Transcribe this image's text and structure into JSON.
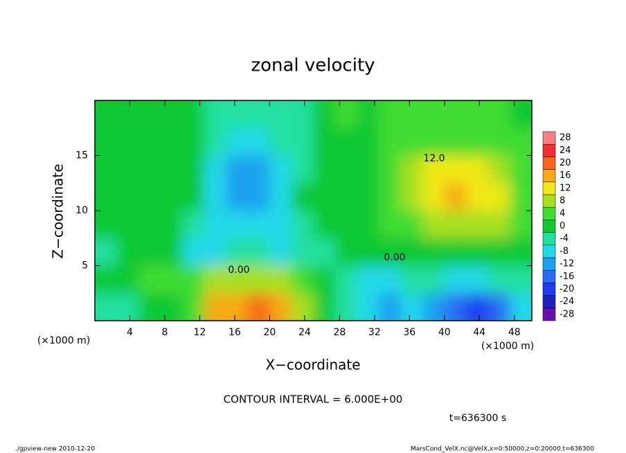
{
  "chart_data": {
    "type": "contour",
    "title": "zonal velocity",
    "x_label": "X−coordinate",
    "y_label": "Z−coordinate",
    "x_unit_label": "(×1000 m)",
    "y_unit_label": "(×1000 m)",
    "xlim": [
      0,
      50
    ],
    "ylim": [
      0,
      20
    ],
    "xticks": [
      4,
      8,
      12,
      16,
      20,
      24,
      28,
      32,
      36,
      40,
      44,
      48
    ],
    "yticks": [
      5,
      10,
      15
    ],
    "x": [
      1.25,
      3.75,
      6.25,
      8.75,
      11.25,
      13.75,
      16.25,
      18.75,
      21.25,
      23.75,
      26.25,
      28.75,
      31.25,
      33.75,
      36.25,
      38.75,
      41.25,
      43.75,
      46.25,
      48.75
    ],
    "z": [
      1.25,
      3.75,
      6.25,
      8.75,
      11.25,
      13.75,
      16.25,
      18.75
    ],
    "values": [
      [
        -4,
        -2,
        0,
        2,
        6,
        16,
        18,
        19,
        18,
        10,
        2,
        -4,
        -9,
        -10,
        -6,
        -10,
        -16,
        -18,
        -16,
        -8
      ],
      [
        0,
        2,
        4,
        4,
        6,
        8,
        8,
        8,
        8,
        6,
        0,
        -2,
        -6,
        -6,
        -2,
        -4,
        -6,
        -6,
        -4,
        -2
      ],
      [
        -2,
        0,
        2,
        0,
        -6,
        -6,
        -4,
        -4,
        -6,
        -4,
        -2,
        0,
        2,
        0,
        0,
        2,
        2,
        2,
        2,
        0
      ],
      [
        2,
        2,
        2,
        2,
        -4,
        -6,
        -8,
        -8,
        -6,
        -2,
        2,
        2,
        2,
        4,
        6,
        8,
        10,
        10,
        8,
        4
      ],
      [
        2,
        2,
        2,
        2,
        0,
        -6,
        -12,
        -10,
        -6,
        0,
        2,
        2,
        2,
        4,
        10,
        12,
        15,
        14,
        12,
        6
      ],
      [
        2,
        2,
        2,
        2,
        0,
        -6,
        -10,
        -10,
        -6,
        -2,
        2,
        2,
        2,
        4,
        8,
        12,
        12,
        12,
        10,
        6
      ],
      [
        2,
        2,
        2,
        2,
        0,
        -4,
        -6,
        -6,
        -4,
        -2,
        2,
        2,
        2,
        4,
        6,
        6,
        6,
        6,
        4,
        4
      ],
      [
        2,
        2,
        2,
        2,
        0,
        -2,
        -2,
        -2,
        -2,
        -2,
        2,
        4,
        2,
        4,
        4,
        4,
        4,
        4,
        4,
        2
      ]
    ],
    "colorbar_ticks": [
      -28,
      -24,
      -20,
      -16,
      -12,
      -8,
      -4,
      0,
      4,
      8,
      12,
      16,
      20,
      24,
      28
    ],
    "colors": [
      "#6a0dad",
      "#2020c0",
      "#1e3cf0",
      "#2a6cf5",
      "#1ea0f0",
      "#20d8e8",
      "#20e0a0",
      "#10c830",
      "#40dc30",
      "#a8e020",
      "#f0e818",
      "#f8a818",
      "#f86818",
      "#f03030",
      "#f88080"
    ],
    "contour_labels": [
      "12.0",
      "0.00",
      "0.00"
    ],
    "contour_interval": "CONTOUR INTERVAL = 6.000E+00",
    "time_label": "t=636300 s",
    "footer_left": "./gpview-new  2010-12-20",
    "footer_right": "MarsCond_VelX.nc@VelX,x=0:50000,z=0:20000,t=636300"
  }
}
